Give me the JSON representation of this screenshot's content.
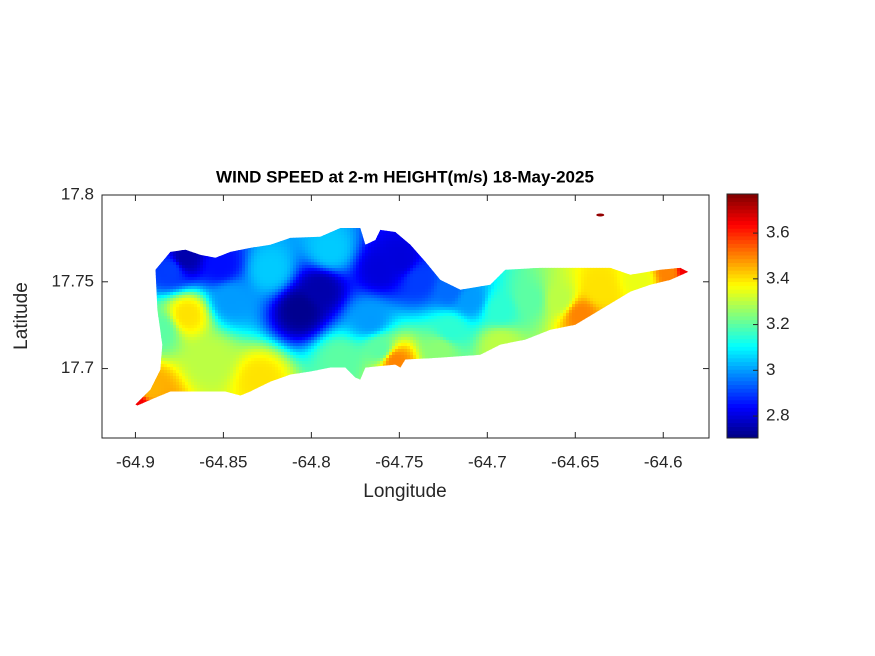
{
  "chart_data": {
    "type": "contour",
    "title": "WIND SPEED at 2-m HEIGHT(m/s) 18-May-2025",
    "xlabel": "Longitude",
    "ylabel": "Latitude",
    "xlim": [
      -64.919,
      -64.574
    ],
    "ylim": [
      17.66,
      17.8
    ],
    "xticks": [
      -64.9,
      -64.85,
      -64.8,
      -64.75,
      -64.7,
      -64.65,
      -64.6
    ],
    "yticks": [
      17.7,
      17.75,
      17.8
    ],
    "clim": [
      2.704,
      3.771
    ],
    "cticks": [
      2.8,
      3,
      3.2,
      3.4,
      3.6
    ],
    "colormap": "jet",
    "outline": {
      "x": [
        -64.9,
        -64.8915,
        -64.8858,
        -64.8847,
        -64.8875,
        -64.8886,
        -64.8801,
        -64.8716,
        -64.8631,
        -64.8545,
        -64.846,
        -64.8347,
        -64.8233,
        -64.8119,
        -64.7949,
        -64.7835,
        -64.7722,
        -64.7693,
        -64.7636,
        -64.7608,
        -64.7523,
        -64.7437,
        -64.7352,
        -64.7267,
        -64.7153,
        -64.6983,
        -64.6898,
        -64.6699,
        -64.6472,
        -64.6301,
        -64.6188,
        -64.6017,
        -64.5903,
        -64.5858,
        -64.596,
        -64.6074,
        -64.6188,
        -64.6358,
        -64.65,
        -64.6642,
        -64.6784,
        -64.6926,
        -64.704,
        -64.7267,
        -64.7466,
        -64.7494,
        -64.7523,
        -64.7693,
        -64.7722,
        -64.775,
        -64.7807,
        -64.7892,
        -64.8006,
        -64.8119,
        -64.8233,
        -64.8347,
        -64.8403,
        -64.8489,
        -64.8631,
        -64.8801,
        -64.8886,
        -64.8989
      ],
      "y": [
        17.6793,
        17.6879,
        17.6994,
        17.7138,
        17.7339,
        17.7569,
        17.7672,
        17.7684,
        17.7655,
        17.7638,
        17.7672,
        17.7695,
        17.7713,
        17.7753,
        17.7759,
        17.781,
        17.781,
        17.7713,
        17.7741,
        17.7799,
        17.7787,
        17.7713,
        17.7615,
        17.7511,
        17.7454,
        17.7483,
        17.7569,
        17.758,
        17.758,
        17.758,
        17.754,
        17.7569,
        17.758,
        17.7557,
        17.7511,
        17.7483,
        17.7443,
        17.7339,
        17.7253,
        17.7224,
        17.7167,
        17.7138,
        17.708,
        17.7063,
        17.7052,
        17.7006,
        17.7023,
        17.7006,
        17.6937,
        17.6948,
        17.7006,
        17.7006,
        17.6983,
        17.6966,
        17.6925,
        17.6868,
        17.6845,
        17.6868,
        17.6868,
        17.6868,
        17.6833,
        17.6787
      ]
    },
    "samples": {
      "x": [
        -64.8989,
        -64.8915,
        -64.8705,
        -64.8801,
        -64.8716,
        -64.846,
        -64.8574,
        -64.829,
        -64.8233,
        -64.8063,
        -64.7949,
        -64.7892,
        -64.7608,
        -64.7494,
        -64.7381,
        -64.7665,
        -64.7608,
        -64.7523,
        -64.7835,
        -64.721,
        -64.7097,
        -64.6926,
        -64.6756,
        -64.6585,
        -64.6472,
        -64.6358,
        -64.6131,
        -64.596,
        -64.5875,
        -64.7267,
        -64.6926,
        -64.721,
        -64.8517,
        -64.8858
      ],
      "y": [
        17.6793,
        17.6879,
        17.731,
        17.7569,
        17.7638,
        17.7397,
        17.7052,
        17.6937,
        17.7569,
        17.7339,
        17.7454,
        17.7684,
        17.7569,
        17.7626,
        17.7511,
        17.7282,
        17.7109,
        17.704,
        17.7052,
        17.7224,
        17.7397,
        17.7339,
        17.7397,
        17.7397,
        17.731,
        17.7454,
        17.7511,
        17.7557,
        17.7569,
        17.7109,
        17.7138,
        17.7454,
        17.7598,
        17.7224
      ],
      "values": [
        3.65,
        3.45,
        3.4,
        2.9,
        2.75,
        3.0,
        3.3,
        3.4,
        3.05,
        2.72,
        2.75,
        3.05,
        2.8,
        2.8,
        2.9,
        3.0,
        3.2,
        3.5,
        3.2,
        3.15,
        3.0,
        3.15,
        3.2,
        3.3,
        3.5,
        3.4,
        3.35,
        3.5,
        3.65,
        3.25,
        3.3,
        2.95,
        2.85,
        3.2
      ]
    },
    "islet": {
      "x": -64.6358,
      "y": 17.7885,
      "value": 3.75
    }
  }
}
